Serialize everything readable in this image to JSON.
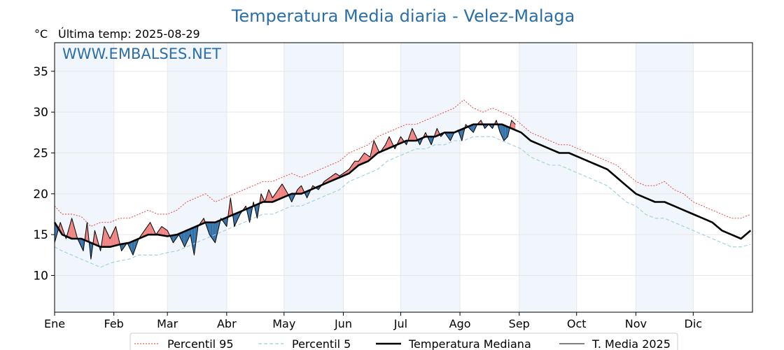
{
  "chart_data": {
    "type": "line",
    "title": "Temperatura Media diaria - Velez-Malaga",
    "unit": "°C",
    "last_temp_label": "Última temp: 2025-08-29",
    "watermark": "WWW.EMBALSES.NET",
    "xlabel": "",
    "ylabel": "",
    "ylim": [
      5.5,
      38.5
    ],
    "yticks": [
      10,
      15,
      20,
      25,
      30,
      35
    ],
    "x_axis": "day of year",
    "month_labels": [
      "Ene",
      "Feb",
      "Mar",
      "Abr",
      "May",
      "Jun",
      "Jul",
      "Ago",
      "Sep",
      "Oct",
      "Nov",
      "Dic"
    ],
    "month_start_days": [
      1,
      32,
      60,
      91,
      121,
      152,
      182,
      213,
      244,
      274,
      305,
      335
    ],
    "grid": true,
    "legend_position": "bottom",
    "colors": {
      "percentil95": "#e8342c",
      "percentil5": "#9ccde0",
      "mediana": "#000000",
      "media2025": "#000000",
      "above_fill": "#f08080",
      "below_fill": "#2e6fa8",
      "band": "#f0f6fc",
      "title": "#2c6fa8"
    },
    "series": [
      {
        "name": "Percentil 95",
        "style": "dotted",
        "points": [
          [
            1,
            18.5
          ],
          [
            5,
            17.5
          ],
          [
            10,
            17.5
          ],
          [
            15,
            17.2
          ],
          [
            20,
            16
          ],
          [
            25,
            16.5
          ],
          [
            30,
            16.5
          ],
          [
            35,
            17
          ],
          [
            40,
            17
          ],
          [
            45,
            17.5
          ],
          [
            50,
            18
          ],
          [
            55,
            17.5
          ],
          [
            60,
            17.5
          ],
          [
            65,
            18
          ],
          [
            70,
            19
          ],
          [
            75,
            19.5
          ],
          [
            80,
            20
          ],
          [
            85,
            19
          ],
          [
            90,
            19.5
          ],
          [
            95,
            20
          ],
          [
            100,
            20.5
          ],
          [
            105,
            21
          ],
          [
            110,
            21.5
          ],
          [
            115,
            21.5
          ],
          [
            120,
            22
          ],
          [
            125,
            22.5
          ],
          [
            130,
            22
          ],
          [
            135,
            22.5
          ],
          [
            140,
            23
          ],
          [
            145,
            23.5
          ],
          [
            150,
            24
          ],
          [
            155,
            25
          ],
          [
            160,
            25.5
          ],
          [
            165,
            26
          ],
          [
            170,
            27
          ],
          [
            175,
            27.5
          ],
          [
            180,
            28
          ],
          [
            185,
            28.5
          ],
          [
            190,
            28.5
          ],
          [
            195,
            29
          ],
          [
            200,
            29.5
          ],
          [
            205,
            30
          ],
          [
            210,
            30.5
          ],
          [
            215,
            31.5
          ],
          [
            220,
            30.5
          ],
          [
            225,
            30
          ],
          [
            230,
            30.5
          ],
          [
            235,
            30
          ],
          [
            240,
            29.5
          ],
          [
            245,
            28.5
          ],
          [
            250,
            27.5
          ],
          [
            255,
            27
          ],
          [
            260,
            26.5
          ],
          [
            265,
            26
          ],
          [
            270,
            26
          ],
          [
            275,
            25.5
          ],
          [
            280,
            25
          ],
          [
            285,
            24.5
          ],
          [
            290,
            24
          ],
          [
            295,
            23.5
          ],
          [
            300,
            22.5
          ],
          [
            305,
            21.5
          ],
          [
            310,
            21
          ],
          [
            315,
            21
          ],
          [
            320,
            21.5
          ],
          [
            325,
            20.5
          ],
          [
            330,
            20
          ],
          [
            335,
            19
          ],
          [
            340,
            18.5
          ],
          [
            345,
            18
          ],
          [
            350,
            17.5
          ],
          [
            355,
            17
          ],
          [
            360,
            17
          ],
          [
            365,
            17.5
          ]
        ]
      },
      {
        "name": "Percentil 5",
        "style": "dashed",
        "points": [
          [
            1,
            13.5
          ],
          [
            5,
            13
          ],
          [
            10,
            12.5
          ],
          [
            15,
            12
          ],
          [
            20,
            11.5
          ],
          [
            25,
            11
          ],
          [
            30,
            11.5
          ],
          [
            35,
            11.8
          ],
          [
            40,
            12
          ],
          [
            45,
            12.5
          ],
          [
            50,
            12.5
          ],
          [
            55,
            12.5
          ],
          [
            60,
            12.8
          ],
          [
            65,
            13
          ],
          [
            70,
            13.5
          ],
          [
            75,
            14
          ],
          [
            80,
            14.5
          ],
          [
            85,
            15
          ],
          [
            90,
            15.5
          ],
          [
            95,
            16
          ],
          [
            100,
            16.5
          ],
          [
            105,
            17
          ],
          [
            110,
            17.5
          ],
          [
            115,
            17.5
          ],
          [
            120,
            18
          ],
          [
            125,
            18.5
          ],
          [
            130,
            18.5
          ],
          [
            135,
            19
          ],
          [
            140,
            19.5
          ],
          [
            145,
            20
          ],
          [
            150,
            20.5
          ],
          [
            155,
            21.5
          ],
          [
            160,
            22
          ],
          [
            165,
            22.5
          ],
          [
            170,
            23
          ],
          [
            175,
            24
          ],
          [
            180,
            24.5
          ],
          [
            185,
            25
          ],
          [
            190,
            25.5
          ],
          [
            195,
            25.5
          ],
          [
            200,
            26
          ],
          [
            205,
            26
          ],
          [
            210,
            26.5
          ],
          [
            215,
            26.5
          ],
          [
            220,
            27
          ],
          [
            225,
            27
          ],
          [
            230,
            27
          ],
          [
            235,
            26.5
          ],
          [
            240,
            26
          ],
          [
            245,
            25.5
          ],
          [
            250,
            24.5
          ],
          [
            255,
            24
          ],
          [
            260,
            23.5
          ],
          [
            265,
            23.5
          ],
          [
            270,
            23
          ],
          [
            275,
            22.5
          ],
          [
            280,
            22
          ],
          [
            285,
            21.5
          ],
          [
            290,
            21
          ],
          [
            295,
            20
          ],
          [
            300,
            19
          ],
          [
            305,
            18.5
          ],
          [
            310,
            17.5
          ],
          [
            315,
            17
          ],
          [
            320,
            17
          ],
          [
            325,
            16.5
          ],
          [
            330,
            16
          ],
          [
            335,
            15.5
          ],
          [
            340,
            15
          ],
          [
            345,
            14.5
          ],
          [
            350,
            14
          ],
          [
            355,
            13.5
          ],
          [
            360,
            13.5
          ],
          [
            365,
            13.8
          ]
        ]
      },
      {
        "name": "Temperatura Mediana",
        "style": "solid-thick",
        "points": [
          [
            1,
            16.5
          ],
          [
            5,
            15
          ],
          [
            10,
            14.5
          ],
          [
            15,
            14.5
          ],
          [
            20,
            14
          ],
          [
            25,
            13.5
          ],
          [
            30,
            13.5
          ],
          [
            35,
            13.8
          ],
          [
            40,
            14
          ],
          [
            45,
            14.5
          ],
          [
            50,
            15
          ],
          [
            55,
            15
          ],
          [
            60,
            14.8
          ],
          [
            65,
            15
          ],
          [
            70,
            15.5
          ],
          [
            75,
            16
          ],
          [
            80,
            16.5
          ],
          [
            85,
            16.5
          ],
          [
            90,
            17
          ],
          [
            95,
            17.5
          ],
          [
            100,
            18
          ],
          [
            105,
            18.5
          ],
          [
            110,
            19
          ],
          [
            115,
            19
          ],
          [
            120,
            19.5
          ],
          [
            125,
            20
          ],
          [
            130,
            20
          ],
          [
            135,
            20.5
          ],
          [
            140,
            21
          ],
          [
            145,
            21.5
          ],
          [
            150,
            22
          ],
          [
            155,
            22.5
          ],
          [
            160,
            23.5
          ],
          [
            165,
            24
          ],
          [
            170,
            25
          ],
          [
            175,
            25.5
          ],
          [
            180,
            26
          ],
          [
            185,
            26.5
          ],
          [
            190,
            26.5
          ],
          [
            195,
            27
          ],
          [
            200,
            27
          ],
          [
            205,
            27.5
          ],
          [
            210,
            27.5
          ],
          [
            215,
            28
          ],
          [
            220,
            28.5
          ],
          [
            225,
            28.5
          ],
          [
            230,
            28.5
          ],
          [
            235,
            28.5
          ],
          [
            240,
            28
          ],
          [
            245,
            27.5
          ],
          [
            250,
            26.5
          ],
          [
            255,
            26
          ],
          [
            260,
            25.5
          ],
          [
            265,
            25
          ],
          [
            270,
            25
          ],
          [
            275,
            24.5
          ],
          [
            280,
            24
          ],
          [
            285,
            23.5
          ],
          [
            290,
            23
          ],
          [
            295,
            22
          ],
          [
            300,
            21
          ],
          [
            305,
            20
          ],
          [
            310,
            19.5
          ],
          [
            315,
            19
          ],
          [
            320,
            19
          ],
          [
            325,
            18.5
          ],
          [
            330,
            18
          ],
          [
            335,
            17.5
          ],
          [
            340,
            17
          ],
          [
            345,
            16.5
          ],
          [
            350,
            15.5
          ],
          [
            355,
            15
          ],
          [
            360,
            14.5
          ],
          [
            365,
            15.5
          ]
        ]
      },
      {
        "name": "T. Media 2025",
        "style": "solid-thin",
        "points": [
          [
            1,
            14
          ],
          [
            4,
            16.5
          ],
          [
            7,
            14.5
          ],
          [
            10,
            17
          ],
          [
            13,
            14.5
          ],
          [
            16,
            13
          ],
          [
            18,
            16.5
          ],
          [
            20,
            12
          ],
          [
            22,
            15.5
          ],
          [
            25,
            13
          ],
          [
            27,
            16
          ],
          [
            30,
            14.5
          ],
          [
            33,
            16
          ],
          [
            36,
            13
          ],
          [
            39,
            14
          ],
          [
            42,
            12.5
          ],
          [
            45,
            14.5
          ],
          [
            48,
            15.5
          ],
          [
            51,
            16.5
          ],
          [
            54,
            15
          ],
          [
            57,
            16
          ],
          [
            60,
            15.5
          ],
          [
            63,
            14
          ],
          [
            66,
            15
          ],
          [
            69,
            13.5
          ],
          [
            72,
            15
          ],
          [
            74,
            12.5
          ],
          [
            76,
            16
          ],
          [
            79,
            17
          ],
          [
            82,
            15
          ],
          [
            85,
            14
          ],
          [
            88,
            17
          ],
          [
            91,
            16
          ],
          [
            93,
            19.5
          ],
          [
            95,
            16
          ],
          [
            98,
            17.5
          ],
          [
            101,
            18.5
          ],
          [
            103,
            16.5
          ],
          [
            105,
            19
          ],
          [
            107,
            17
          ],
          [
            109,
            20
          ],
          [
            111,
            19
          ],
          [
            113,
            20.5
          ],
          [
            115,
            19.5
          ],
          [
            120,
            21.2
          ],
          [
            123,
            20
          ],
          [
            125,
            19
          ],
          [
            128,
            20.5
          ],
          [
            130,
            21
          ],
          [
            133,
            19.5
          ],
          [
            136,
            21
          ],
          [
            139,
            20.5
          ],
          [
            142,
            21.5
          ],
          [
            145,
            22
          ],
          [
            148,
            22.5
          ],
          [
            150,
            22.2
          ],
          [
            152,
            22.5
          ],
          [
            155,
            23
          ],
          [
            158,
            24
          ],
          [
            160,
            24
          ],
          [
            163,
            25
          ],
          [
            166,
            24.5
          ],
          [
            168,
            26.5
          ],
          [
            171,
            25
          ],
          [
            174,
            26
          ],
          [
            176,
            27
          ],
          [
            179,
            25.5
          ],
          [
            182,
            27
          ],
          [
            185,
            26
          ],
          [
            188,
            28
          ],
          [
            190,
            27
          ],
          [
            192,
            26
          ],
          [
            195,
            27.5
          ],
          [
            198,
            26
          ],
          [
            201,
            28
          ],
          [
            203,
            27
          ],
          [
            205,
            27.5
          ],
          [
            208,
            26.5
          ],
          [
            210,
            27.5
          ],
          [
            212,
            27.8
          ],
          [
            214,
            26.5
          ],
          [
            216,
            28.5
          ],
          [
            218,
            28
          ],
          [
            220,
            27.5
          ],
          [
            222,
            28.5
          ],
          [
            224,
            29
          ],
          [
            226,
            28
          ],
          [
            228,
            28.5
          ],
          [
            230,
            28
          ],
          [
            232,
            29
          ],
          [
            234,
            27.5
          ],
          [
            236,
            26.5
          ],
          [
            238,
            27
          ],
          [
            240,
            29
          ],
          [
            242,
            28.5
          ]
        ]
      }
    ]
  },
  "legend": {
    "entries": [
      "Percentil 95",
      "Percentil 5",
      "Temperatura Mediana",
      "T. Media 2025"
    ]
  }
}
